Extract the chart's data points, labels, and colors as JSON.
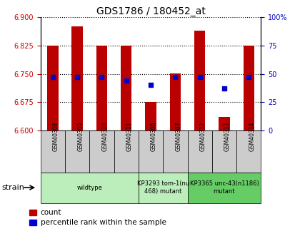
{
  "title": "GDS1786 / 180452_at",
  "samples": [
    "GSM40308",
    "GSM40309",
    "GSM40310",
    "GSM40311",
    "GSM40306",
    "GSM40307",
    "GSM40312",
    "GSM40313",
    "GSM40314"
  ],
  "count_values": [
    6.825,
    6.875,
    6.825,
    6.825,
    6.675,
    6.75,
    6.865,
    6.635,
    6.825
  ],
  "percentile_values": [
    47,
    47,
    47,
    44,
    40,
    47,
    47,
    37,
    47
  ],
  "ylim": [
    6.6,
    6.9
  ],
  "yticks": [
    6.6,
    6.675,
    6.75,
    6.825,
    6.9
  ],
  "right_ylim": [
    0,
    100
  ],
  "right_yticks": [
    0,
    25,
    50,
    75,
    100
  ],
  "right_yticklabels": [
    "0",
    "25",
    "50",
    "75",
    "100%"
  ],
  "bar_color": "#bb0000",
  "dot_color": "#0000cc",
  "bar_width": 0.45,
  "group_starts": [
    0,
    4,
    6
  ],
  "group_ends": [
    4,
    6,
    9
  ],
  "group_labels": [
    "wildtype",
    "KP3293 tom-1(nu\n468) mutant",
    "KP3365 unc-43(n1186)\nmutant"
  ],
  "group_colors": [
    "#bbeebb",
    "#bbeebb",
    "#66cc66"
  ],
  "strain_label": "strain",
  "legend_labels": [
    "count",
    "percentile rank within the sample"
  ],
  "legend_colors": [
    "#bb0000",
    "#0000cc"
  ],
  "grid_color": "black",
  "left_label_color": "#cc0000",
  "right_label_color": "#0000cc",
  "tick_label_fontsize": 6.5,
  "sample_box_color": "#cccccc"
}
